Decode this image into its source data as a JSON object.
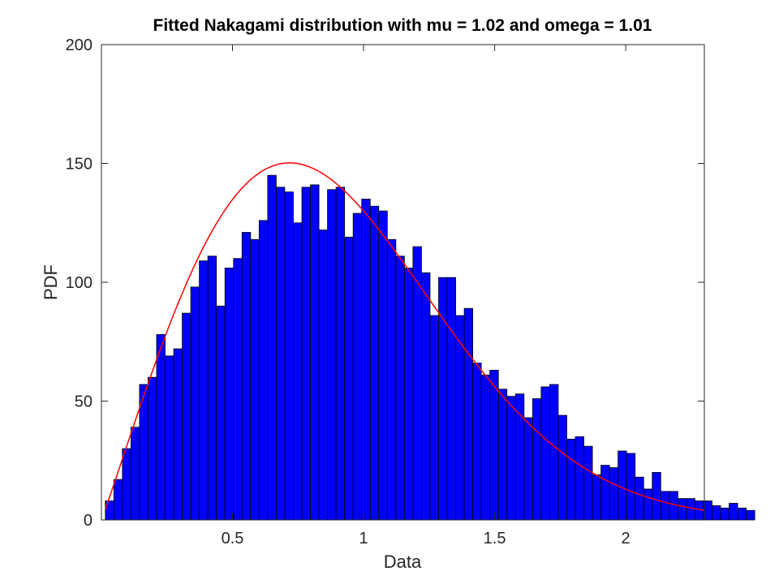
{
  "chart_data": {
    "type": "bar",
    "title": "Fitted Nakagami distribution with mu = 1.02 and omega = 1.01",
    "xlabel": "Data",
    "ylabel": "PDF",
    "xlim": [
      0.0,
      2.3
    ],
    "ylim": [
      0,
      200
    ],
    "x_ticks": [
      {
        "value": 0.5,
        "label": "0.5"
      },
      {
        "value": 1.0,
        "label": "1"
      },
      {
        "value": 1.5,
        "label": "1.5"
      },
      {
        "value": 2.0,
        "label": "2"
      }
    ],
    "y_ticks": [
      {
        "value": 0,
        "label": "0"
      },
      {
        "value": 50,
        "label": "50"
      },
      {
        "value": 100,
        "label": "100"
      },
      {
        "value": 150,
        "label": "150"
      },
      {
        "value": 200,
        "label": "200"
      }
    ],
    "grid": false,
    "histogram": {
      "bin_start": 0.0148,
      "bin_width": 0.0326,
      "counts": [
        8,
        17,
        30,
        39,
        57,
        60,
        78,
        69,
        72,
        87,
        98,
        109,
        111,
        90,
        106,
        110,
        121,
        118,
        126,
        145,
        140,
        138,
        125,
        140,
        141,
        122,
        139,
        140,
        119,
        129,
        135,
        132,
        130,
        118,
        111,
        106,
        115,
        104,
        86,
        102,
        102,
        86,
        89,
        66,
        61,
        63,
        55,
        52,
        53,
        43,
        51,
        56,
        57,
        44,
        34,
        35,
        31,
        19,
        23,
        22,
        29,
        28,
        18,
        13,
        20,
        12,
        12,
        9,
        9,
        8,
        8,
        6,
        5,
        7,
        5,
        4
      ],
      "color": "#0000ff",
      "edge_color": "#000000"
    },
    "fit_curve": {
      "distribution": "nakagami",
      "mu": 1.02,
      "omega": 1.01,
      "color": "#ff0000"
    }
  }
}
